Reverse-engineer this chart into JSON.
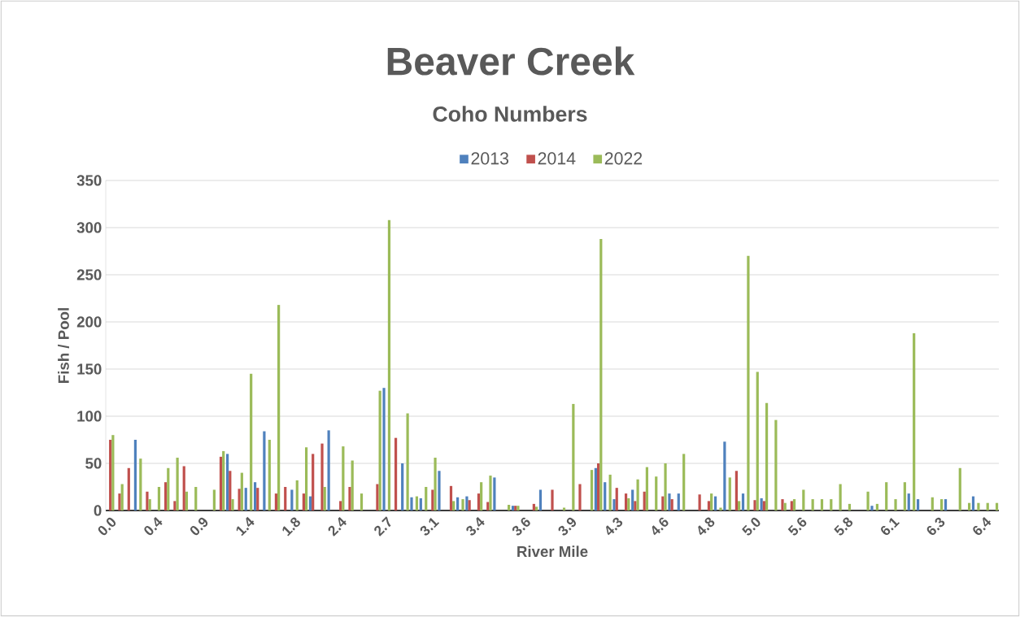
{
  "chart_data": {
    "type": "bar",
    "title": "Beaver Creek",
    "subtitle": "Coho Numbers",
    "xlabel": "River Mile",
    "ylabel": "Fish / Pool",
    "categories": [
      "0.0",
      null,
      null,
      null,
      null,
      "0.4",
      null,
      null,
      null,
      null,
      "0.9",
      null,
      null,
      null,
      null,
      "1.4",
      null,
      null,
      null,
      null,
      "1.8",
      null,
      null,
      null,
      null,
      "2.4",
      null,
      null,
      null,
      null,
      "2.7",
      null,
      null,
      null,
      null,
      "3.1",
      null,
      null,
      null,
      null,
      "3.4",
      null,
      null,
      null,
      null,
      "3.6",
      null,
      null,
      null,
      null,
      "3.9",
      null,
      null,
      null,
      null,
      "4.3",
      null,
      null,
      null,
      null,
      "4.6",
      null,
      null,
      null,
      null,
      "4.8",
      null,
      null,
      null,
      null,
      "5.0",
      null,
      null,
      null,
      null,
      "5.6",
      null,
      null,
      null,
      null,
      "5.8",
      null,
      null,
      null,
      null,
      "6.1",
      null,
      null,
      null,
      null,
      "6.3",
      null,
      null,
      null,
      null,
      "6.4",
      null
    ],
    "series": [
      {
        "name": "2013",
        "color": "#4f81bd",
        "values": [
          0,
          0,
          0,
          75,
          0,
          0,
          0,
          0,
          0,
          0,
          0,
          0,
          0,
          60,
          0,
          24,
          30,
          84,
          0,
          0,
          22,
          0,
          15,
          0,
          85,
          0,
          0,
          0,
          0,
          0,
          130,
          0,
          50,
          14,
          13,
          0,
          42,
          0,
          14,
          15,
          0,
          0,
          35,
          0,
          5,
          0,
          0,
          22,
          0,
          0,
          0,
          0,
          0,
          45,
          30,
          12,
          0,
          22,
          0,
          0,
          0,
          18,
          18,
          0,
          0,
          0,
          15,
          73,
          0,
          18,
          0,
          13,
          0,
          0,
          0,
          0,
          0,
          0,
          0,
          0,
          0,
          0,
          0,
          5,
          0,
          0,
          0,
          18,
          12,
          0,
          0,
          12,
          0,
          0,
          15,
          0,
          0
        ]
      },
      {
        "name": "2014",
        "color": "#c0504d",
        "values": [
          75,
          18,
          45,
          0,
          20,
          0,
          30,
          10,
          47,
          0,
          0,
          0,
          57,
          42,
          23,
          0,
          24,
          0,
          18,
          25,
          0,
          18,
          60,
          71,
          0,
          10,
          25,
          0,
          0,
          28,
          0,
          77,
          0,
          0,
          0,
          22,
          0,
          26,
          0,
          11,
          18,
          9,
          0,
          0,
          5,
          0,
          7,
          0,
          22,
          0,
          0,
          28,
          0,
          50,
          0,
          24,
          18,
          10,
          20,
          0,
          15,
          12,
          0,
          0,
          17,
          10,
          0,
          0,
          42,
          0,
          11,
          10,
          0,
          12,
          10,
          0,
          0,
          0,
          0,
          0,
          0,
          0,
          0,
          0,
          0,
          0,
          0,
          0,
          0,
          0,
          0,
          0,
          0,
          0,
          0,
          0,
          0
        ]
      },
      {
        "name": "2022",
        "color": "#9bbb59",
        "values": [
          80,
          28,
          0,
          55,
          12,
          25,
          45,
          56,
          20,
          25,
          0,
          22,
          63,
          12,
          40,
          145,
          0,
          75,
          218,
          0,
          32,
          67,
          0,
          25,
          0,
          68,
          53,
          18,
          0,
          127,
          308,
          0,
          103,
          15,
          25,
          56,
          0,
          10,
          12,
          0,
          30,
          37,
          0,
          6,
          5,
          0,
          4,
          0,
          0,
          3,
          113,
          0,
          43,
          288,
          38,
          0,
          13,
          33,
          46,
          36,
          50,
          0,
          60,
          0,
          0,
          18,
          3,
          35,
          10,
          270,
          147,
          114,
          96,
          8,
          12,
          22,
          12,
          12,
          12,
          28,
          7,
          0,
          20,
          7,
          30,
          12,
          30,
          188,
          0,
          14,
          12,
          0,
          45,
          8,
          8,
          8,
          8
        ]
      }
    ],
    "ylim": [
      0,
      350
    ],
    "yticks": [
      0,
      50,
      100,
      150,
      200,
      250,
      300,
      350
    ],
    "grid": "y",
    "legend": "top"
  }
}
